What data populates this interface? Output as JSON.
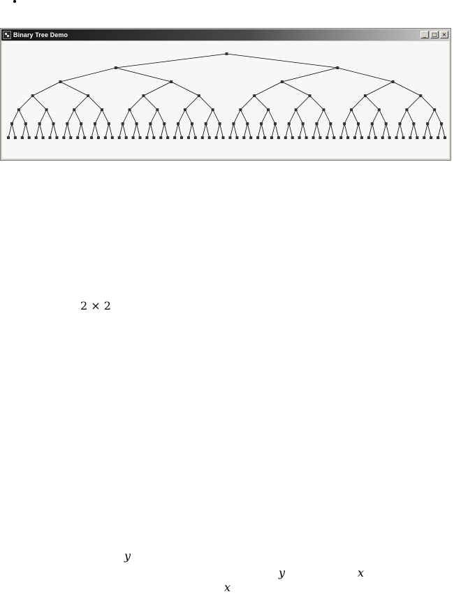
{
  "window": {
    "title": "Binary Tree Demo",
    "buttons": {
      "minimize": "_",
      "maximize": "□",
      "close": "×"
    }
  },
  "tree": {
    "depth": 7,
    "node_color": "#333333",
    "edge_color": "#000000"
  },
  "body_math": {
    "size_expr": "2 × 2",
    "y1": "y",
    "y2": "y",
    "x1": "x",
    "x2": "x"
  }
}
